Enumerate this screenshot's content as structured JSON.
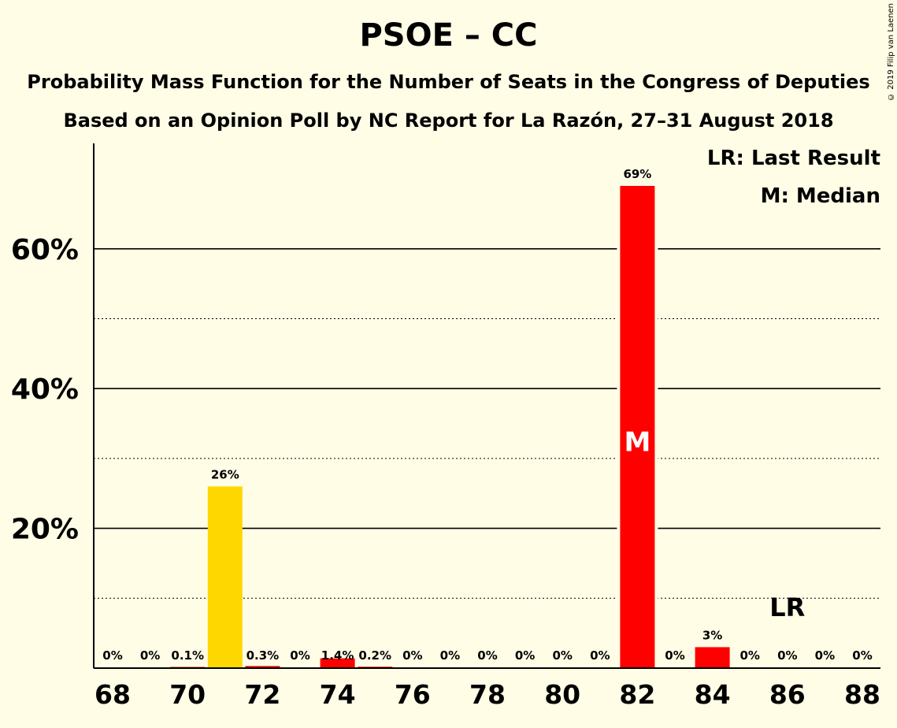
{
  "title": "PSOE – CC",
  "subtitle1": "Probability Mass Function for the Number of Seats in the Congress of Deputies",
  "subtitle2": "Based on an Opinion Poll by NC Report for La Razón, 27–31 August 2018",
  "copyright": "© 2019 Filip van Laenen",
  "legend": {
    "last_result": "LR: Last Result",
    "median": "M: Median"
  },
  "colors": {
    "background": "#fffde6",
    "red": "#ff0000",
    "yellow": "#ffd700"
  },
  "chart_data": {
    "type": "bar",
    "x": [
      68,
      69,
      70,
      71,
      72,
      73,
      74,
      75,
      76,
      77,
      78,
      79,
      80,
      81,
      82,
      83,
      84,
      85,
      86,
      87,
      88
    ],
    "values": [
      0,
      0,
      0.1,
      26,
      0.3,
      0,
      1.4,
      0.2,
      0,
      0,
      0,
      0,
      0,
      0,
      69,
      0,
      3,
      0,
      0,
      0,
      0
    ],
    "value_labels": [
      "0%",
      "0%",
      "0.1%",
      "26%",
      "0.3%",
      "0%",
      "1.4%",
      "0.2%",
      "0%",
      "0%",
      "0%",
      "0%",
      "0%",
      "0%",
      "69%",
      "0%",
      "3%",
      "0%",
      "0%",
      "0%",
      "0%"
    ],
    "bar_colors": [
      "red",
      "red",
      "red",
      "yellow",
      "red",
      "red",
      "red",
      "red",
      "red",
      "red",
      "red",
      "red",
      "red",
      "red",
      "red",
      "red",
      "red",
      "red",
      "red",
      "red",
      "red"
    ],
    "x_tick_labels": [
      "68",
      "70",
      "72",
      "74",
      "76",
      "78",
      "80",
      "82",
      "84",
      "86",
      "88"
    ],
    "y_tick_labels": [
      "20%",
      "40%",
      "60%"
    ],
    "y_ticks": [
      20,
      40,
      60
    ],
    "y_minor_gridlines": [
      10,
      30,
      50
    ],
    "ylim": [
      0,
      75
    ],
    "median_seat": 82,
    "median_marker": "M",
    "last_result_seat": 86,
    "last_result_marker": "LR",
    "grid": true,
    "legend_position": "top-right"
  }
}
